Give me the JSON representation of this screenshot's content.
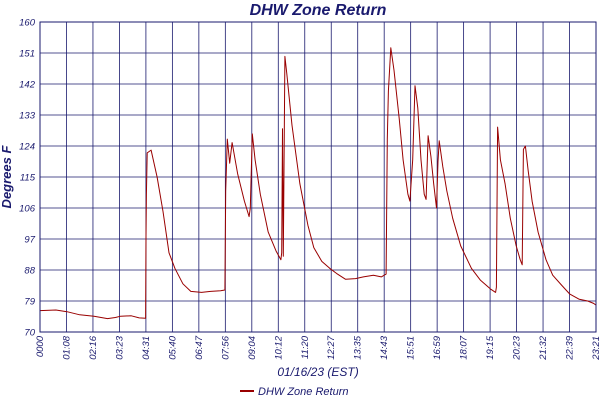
{
  "chart_data": {
    "type": "line",
    "title": "DHW Zone Return",
    "xlabel": "01/16/23 (EST)",
    "ylabel": "Degrees F",
    "x_unit": "time of day (HH:MM)",
    "x_range": [
      "00:00",
      "23:21"
    ],
    "ylim": [
      70,
      160
    ],
    "yticks": [
      70,
      79,
      88,
      97,
      106,
      115,
      124,
      133,
      142,
      151,
      160
    ],
    "xtick_labels": [
      "0000",
      "01:08",
      "02:16",
      "03:23",
      "04:31",
      "05:40",
      "06:47",
      "07:56",
      "09:04",
      "10:12",
      "11:20",
      "12:27",
      "13:35",
      "14:43",
      "15:51",
      "16:59",
      "18:07",
      "19:15",
      "20:23",
      "21:32",
      "22:39",
      "23:21"
    ],
    "grid": true,
    "legend_position": "bottom-center",
    "series": [
      {
        "name": "DHW Zone Return",
        "color": "#990000",
        "points": [
          [
            "00:00",
            76.2
          ],
          [
            "00:40",
            76.4
          ],
          [
            "01:08",
            75.9
          ],
          [
            "01:40",
            75.0
          ],
          [
            "02:16",
            74.6
          ],
          [
            "02:50",
            73.9
          ],
          [
            "03:10",
            74.2
          ],
          [
            "03:23",
            74.6
          ],
          [
            "03:50",
            74.7
          ],
          [
            "04:10",
            74.1
          ],
          [
            "04:26",
            74.0
          ],
          [
            "04:27",
            98.0
          ],
          [
            "04:28",
            110.0
          ],
          [
            "04:30",
            122.0
          ],
          [
            "04:40",
            122.8
          ],
          [
            "04:55",
            115.0
          ],
          [
            "05:10",
            105.0
          ],
          [
            "05:25",
            93.0
          ],
          [
            "05:40",
            88.5
          ],
          [
            "06:00",
            84.0
          ],
          [
            "06:20",
            81.8
          ],
          [
            "06:47",
            81.5
          ],
          [
            "07:10",
            81.8
          ],
          [
            "07:35",
            82.0
          ],
          [
            "07:46",
            82.2
          ],
          [
            "07:48",
            111.0
          ],
          [
            "07:52",
            126.0
          ],
          [
            "07:58",
            119.0
          ],
          [
            "08:04",
            125.0
          ],
          [
            "08:18",
            116.0
          ],
          [
            "08:35",
            108.0
          ],
          [
            "08:47",
            103.5
          ],
          [
            "08:50",
            106.0
          ],
          [
            "08:55",
            127.5
          ],
          [
            "09:02",
            120.0
          ],
          [
            "09:15",
            110.0
          ],
          [
            "09:35",
            99.0
          ],
          [
            "09:55",
            93.5
          ],
          [
            "10:07",
            91.0
          ],
          [
            "10:09",
            93.0
          ],
          [
            "10:11",
            129.0
          ],
          [
            "10:13",
            92.0
          ],
          [
            "10:17",
            150.0
          ],
          [
            "10:22",
            145.0
          ],
          [
            "10:35",
            130.0
          ],
          [
            "10:55",
            113.0
          ],
          [
            "11:15",
            101.0
          ],
          [
            "11:30",
            94.5
          ],
          [
            "11:50",
            90.5
          ],
          [
            "12:10",
            88.5
          ],
          [
            "12:27",
            87.0
          ],
          [
            "12:50",
            85.3
          ],
          [
            "13:15",
            85.5
          ],
          [
            "13:35",
            86.0
          ],
          [
            "14:00",
            86.5
          ],
          [
            "14:20",
            86.0
          ],
          [
            "14:32",
            86.8
          ],
          [
            "14:35",
            126.0
          ],
          [
            "14:38",
            140.0
          ],
          [
            "14:44",
            152.5
          ],
          [
            "14:52",
            146.0
          ],
          [
            "15:05",
            132.0
          ],
          [
            "15:15",
            120.0
          ],
          [
            "15:27",
            110.0
          ],
          [
            "15:32",
            108.0
          ],
          [
            "15:39",
            120.0
          ],
          [
            "15:45",
            141.5
          ],
          [
            "15:52",
            135.0
          ],
          [
            "16:00",
            120.0
          ],
          [
            "16:08",
            110.0
          ],
          [
            "16:13",
            108.5
          ],
          [
            "16:18",
            127.0
          ],
          [
            "16:25",
            121.0
          ],
          [
            "16:32",
            113.0
          ],
          [
            "16:39",
            106.0
          ],
          [
            "16:43",
            119.5
          ],
          [
            "16:46",
            125.5
          ],
          [
            "16:55",
            118.0
          ],
          [
            "17:05",
            111.0
          ],
          [
            "17:20",
            103.0
          ],
          [
            "17:40",
            95.0
          ],
          [
            "18:07",
            88.5
          ],
          [
            "18:30",
            85.0
          ],
          [
            "18:55",
            82.5
          ],
          [
            "19:08",
            81.5
          ],
          [
            "19:10",
            83.0
          ],
          [
            "19:13",
            129.5
          ],
          [
            "19:20",
            120.0
          ],
          [
            "19:32",
            113.0
          ],
          [
            "19:45",
            103.0
          ],
          [
            "20:00",
            95.0
          ],
          [
            "20:10",
            91.0
          ],
          [
            "20:15",
            89.5
          ],
          [
            "20:18",
            123.0
          ],
          [
            "20:23",
            124.0
          ],
          [
            "20:30",
            117.0
          ],
          [
            "20:40",
            108.0
          ],
          [
            "20:55",
            99.0
          ],
          [
            "21:15",
            91.0
          ],
          [
            "21:32",
            86.5
          ],
          [
            "21:55",
            83.5
          ],
          [
            "22:15",
            81.0
          ],
          [
            "22:39",
            79.5
          ],
          [
            "23:00",
            79.0
          ],
          [
            "23:15",
            78.3
          ],
          [
            "23:21",
            77.8
          ]
        ]
      }
    ]
  }
}
